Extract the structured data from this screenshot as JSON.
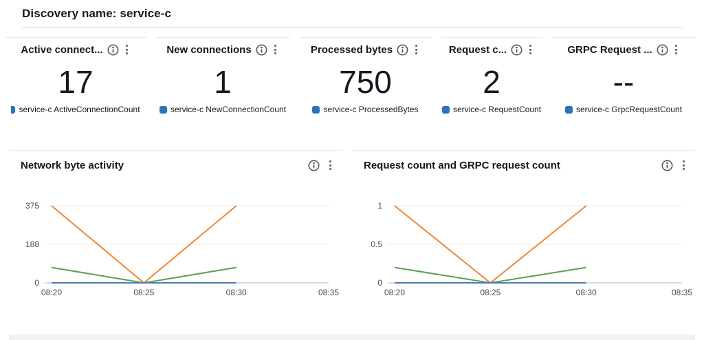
{
  "header": {
    "title": "Discovery name: service-c"
  },
  "colors": {
    "legend_marker_blue": "#2e73b8",
    "line_orange": "#ef8633",
    "line_green": "#57a14f",
    "line_blue": "#4d7fb3",
    "grid": "#edeef0",
    "axis": "#b3b7bc",
    "icon_gray": "#545b64"
  },
  "cards": [
    {
      "title": "Active connect...",
      "value": "17",
      "legend": "service-c ActiveConnectionCount"
    },
    {
      "title": "New connections",
      "value": "1",
      "legend": "service-c NewConnectionCount"
    },
    {
      "title": "Processed bytes",
      "value": "750",
      "legend": "service-c ProcessedBytes"
    },
    {
      "title": "Request c...",
      "value": "2",
      "legend": "service-c RequestCount"
    },
    {
      "title": "GRPC Request ...",
      "value": "--",
      "legend": "service-c GrpcRequestCount"
    }
  ],
  "chart_data": [
    {
      "type": "line",
      "title": "Network byte activity",
      "x_tick_labels": [
        "08:20",
        "08:25",
        "08:30",
        "08:35"
      ],
      "y_tick_labels": [
        "0",
        "188",
        "375"
      ],
      "y_ticks": [
        0,
        188,
        375
      ],
      "ylim": [
        0,
        375
      ],
      "grid": "horizontal",
      "legend_position": "none",
      "series": [
        {
          "name": "series-orange",
          "color": "#ef8633",
          "values": [
            375,
            0,
            375
          ]
        },
        {
          "name": "series-green",
          "color": "#57a14f",
          "values": [
            75,
            0,
            75
          ]
        },
        {
          "name": "series-blue",
          "color": "#4d7fb3",
          "values": [
            0,
            0,
            0
          ]
        }
      ]
    },
    {
      "type": "line",
      "title": "Request count and GRPC request count",
      "x_tick_labels": [
        "08:20",
        "08:25",
        "08:30",
        "08:35"
      ],
      "y_tick_labels": [
        "0",
        "0.5",
        "1"
      ],
      "y_ticks": [
        0,
        0.5,
        1
      ],
      "ylim": [
        0,
        1
      ],
      "grid": "horizontal",
      "legend_position": "none",
      "series": [
        {
          "name": "series-orange",
          "color": "#ef8633",
          "values": [
            1,
            0,
            1
          ]
        },
        {
          "name": "series-green",
          "color": "#57a14f",
          "values": [
            0.2,
            0,
            0.2
          ]
        },
        {
          "name": "series-blue",
          "color": "#4d7fb3",
          "values": [
            0,
            0,
            0
          ]
        }
      ]
    }
  ]
}
